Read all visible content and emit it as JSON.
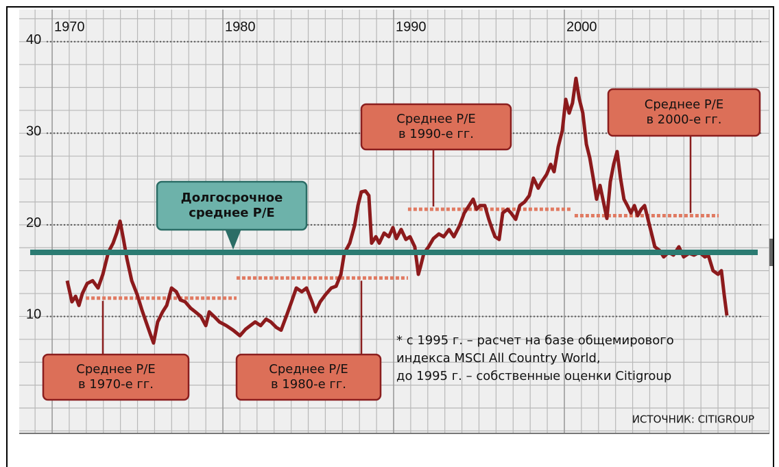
{
  "chart_data": {
    "type": "line",
    "color": "#8c1a1c",
    "xlim": [
      1968.07,
      2012.01
    ],
    "ylim": [
      -2.77,
      43.5
    ],
    "xticks": [
      1970,
      1980,
      1990,
      2000
    ],
    "yticks": [
      10,
      20,
      30,
      40
    ],
    "grid": true,
    "x": [
      1970.88,
      1971.16,
      1971.37,
      1971.57,
      1971.77,
      1972.05,
      1972.37,
      1972.69,
      1972.97,
      1973.29,
      1973.57,
      1973.78,
      1973.98,
      1974.18,
      1974.38,
      1974.66,
      1974.98,
      1975.26,
      1975.5,
      1975.78,
      1975.94,
      1976.18,
      1976.47,
      1976.71,
      1976.99,
      1977.27,
      1977.51,
      1977.79,
      1978.11,
      1978.39,
      1978.71,
      1979.0,
      1979.2,
      1979.48,
      1979.8,
      1980.2,
      1980.6,
      1981.0,
      1981.33,
      1981.61,
      1981.89,
      1982.21,
      1982.53,
      1982.81,
      1983.13,
      1983.41,
      1983.73,
      1984.02,
      1984.3,
      1984.62,
      1984.9,
      1985.22,
      1985.42,
      1985.7,
      1986.02,
      1986.35,
      1986.63,
      1986.91,
      1987.11,
      1987.43,
      1987.71,
      1987.91,
      1988.11,
      1988.35,
      1988.55,
      1988.71,
      1988.96,
      1989.16,
      1989.44,
      1989.72,
      1989.96,
      1990.16,
      1990.44,
      1990.72,
      1990.96,
      1991.24,
      1991.45,
      1991.57,
      1991.77,
      1992.05,
      1992.33,
      1992.65,
      1992.93,
      1993.25,
      1993.53,
      1993.86,
      1994.14,
      1994.42,
      1994.66,
      1994.86,
      1995.06,
      1995.34,
      1995.58,
      1995.78,
      1995.94,
      1996.18,
      1996.39,
      1996.67,
      1996.87,
      1997.15,
      1997.39,
      1997.67,
      1997.95,
      1998.19,
      1998.47,
      1998.67,
      1998.96,
      1999.2,
      1999.4,
      1999.64,
      1999.88,
      2000.08,
      2000.28,
      2000.48,
      2000.68,
      2000.88,
      2001.08,
      2001.29,
      2001.49,
      2001.69,
      2001.89,
      2002.09,
      2002.29,
      2002.49,
      2002.69,
      2002.89,
      2003.09,
      2003.29,
      2003.49,
      2003.69,
      2003.9,
      2004.1,
      2004.3,
      2004.5,
      2004.7,
      2004.9,
      2005.1,
      2005.3,
      2005.58,
      2005.82,
      2006.1,
      2006.39,
      2006.71,
      2006.99,
      2007.31,
      2007.59,
      2007.91,
      2008.23,
      2008.43,
      2008.71,
      2009.0,
      2009.2,
      2009.36,
      2009.52
    ],
    "values": [
      13.9,
      11.6,
      12.2,
      11.2,
      12.5,
      13.6,
      13.9,
      13.1,
      14.6,
      17.0,
      18.0,
      19.1,
      20.4,
      18.4,
      16.3,
      13.9,
      12.4,
      10.7,
      9.4,
      7.9,
      7.1,
      9.4,
      10.5,
      11.2,
      13.1,
      12.7,
      11.8,
      11.6,
      10.9,
      10.5,
      10.0,
      9.0,
      10.5,
      10.0,
      9.4,
      9.0,
      8.5,
      7.9,
      8.6,
      9.0,
      9.4,
      9.0,
      9.7,
      9.4,
      8.8,
      8.5,
      10.1,
      11.6,
      13.1,
      12.7,
      13.1,
      11.6,
      10.5,
      11.6,
      12.4,
      13.1,
      13.3,
      14.6,
      16.9,
      18.0,
      19.9,
      22.1,
      23.6,
      23.7,
      23.2,
      18.0,
      18.7,
      18.0,
      19.1,
      18.7,
      19.7,
      18.5,
      19.5,
      18.4,
      18.7,
      17.6,
      14.6,
      15.4,
      16.9,
      17.6,
      18.5,
      19.0,
      18.7,
      19.5,
      18.7,
      19.9,
      21.3,
      22.1,
      22.8,
      21.7,
      22.1,
      22.1,
      20.6,
      19.5,
      18.7,
      18.4,
      21.3,
      21.7,
      21.3,
      20.6,
      22.1,
      22.5,
      23.2,
      25.1,
      24.0,
      24.7,
      25.5,
      26.6,
      25.8,
      28.5,
      30.3,
      33.7,
      32.2,
      33.3,
      36.0,
      33.7,
      32.2,
      28.8,
      27.3,
      25.1,
      22.8,
      24.3,
      22.5,
      20.7,
      24.7,
      26.6,
      28.0,
      25.1,
      22.8,
      22.1,
      21.3,
      22.1,
      21.0,
      21.7,
      22.1,
      20.6,
      19.1,
      17.6,
      17.2,
      16.5,
      17.0,
      16.7,
      17.6,
      16.5,
      16.9,
      16.7,
      17.0,
      16.5,
      16.7,
      15.0,
      14.6,
      15.0,
      12.4,
      10.1
    ],
    "reference_lines": [
      {
        "value": 17,
        "color": "#2b7b72",
        "label": [
          "Долгосрочное",
          "среднее P/E"
        ]
      },
      {
        "value": 12,
        "x": [
          1971.97,
          1980.8
        ],
        "color": "#e07a62",
        "label": [
          "Среднее P/E",
          "в 1970-е гг."
        ]
      },
      {
        "value": 14.2,
        "x": [
          1980.8,
          1990.84
        ],
        "color": "#e07a62",
        "label": [
          "Среднее P/E",
          "в 1980-е гг."
        ]
      },
      {
        "value": 21.7,
        "x": [
          1990.84,
          2000.36
        ],
        "color": "#e07a62",
        "label": [
          "Среднее P/E",
          "в 1990-е гг."
        ]
      },
      {
        "value": 21,
        "x": [
          2000.6,
          2009.04
        ],
        "color": "#e07a62",
        "label": [
          "Среднее P/E",
          "в 2000-е гг."
        ]
      }
    ],
    "note": [
      "* с 1995 г. – расчет на базе общемирового",
      "индекса MSCI All Country World,",
      "до 1995 г. – собственные оценки Citigroup"
    ],
    "source": "ИСТОЧНИК: CITIGROUP"
  }
}
